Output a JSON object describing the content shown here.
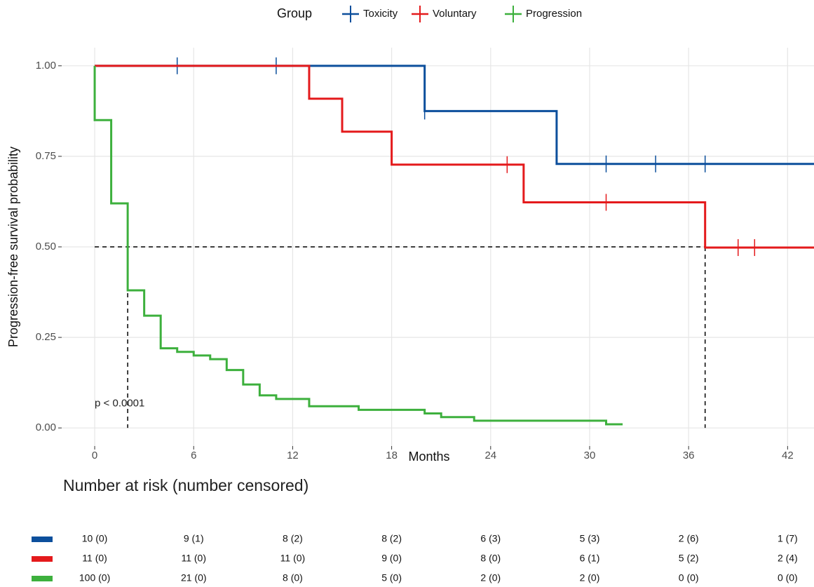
{
  "chart_data": {
    "type": "step",
    "legend_title": "Group",
    "xlabel": "Months",
    "ylabel": "Progression-free survival probability",
    "xlim": [
      -2,
      43.6
    ],
    "ylim": [
      -0.05,
      1.05
    ],
    "xticks": [
      0,
      6,
      12,
      18,
      24,
      30,
      36,
      42
    ],
    "yticks": [
      {
        "value": 0,
        "label": "0.00"
      },
      {
        "value": 0.25,
        "label": "0.25"
      },
      {
        "value": 0.5,
        "label": "0.50"
      },
      {
        "value": 0.75,
        "label": "0.75"
      },
      {
        "value": 1,
        "label": "1.00"
      }
    ],
    "grid": true,
    "series": [
      {
        "name": "Toxicity",
        "color": "#0c4f9c",
        "x": [
          0,
          20,
          28,
          44
        ],
        "values": [
          1,
          0.875,
          0.729,
          0.729
        ],
        "censor_x": [
          5,
          11,
          20,
          31,
          34,
          37
        ],
        "censor_values": [
          1,
          1,
          0.875,
          0.729,
          0.729,
          0.729
        ]
      },
      {
        "name": "Voluntary",
        "color": "#e41a1c",
        "x": [
          0,
          13,
          15,
          18,
          26,
          37,
          44
        ],
        "values": [
          1,
          0.909,
          0.818,
          0.727,
          0.623,
          0.498,
          0.498
        ],
        "censor_x": [
          25,
          31,
          39,
          40,
          44
        ],
        "censor_values": [
          0.727,
          0.623,
          0.498,
          0.498,
          0.498
        ]
      },
      {
        "name": "Progression",
        "color": "#3db03d",
        "x": [
          0,
          0,
          1,
          2,
          3,
          4,
          5,
          6,
          7,
          8,
          9,
          10,
          11,
          13,
          16,
          20,
          21,
          23,
          31,
          32
        ],
        "values": [
          1,
          0.85,
          0.62,
          0.38,
          0.31,
          0.22,
          0.21,
          0.2,
          0.19,
          0.16,
          0.12,
          0.09,
          0.08,
          0.06,
          0.05,
          0.04,
          0.03,
          0.02,
          0.01,
          0.01
        ],
        "censor_x": [],
        "censor_values": []
      }
    ],
    "median_line": {
      "y": 0.5,
      "x": [
        2,
        37
      ]
    },
    "annotation": {
      "text": "p < 0.0001",
      "x": 0,
      "y": 0.04
    },
    "risk_table": {
      "title": "Number at risk (number censored)",
      "rows": [
        [
          "10 (0)",
          "9 (1)",
          "8 (2)",
          "8 (2)",
          "6 (3)",
          "5 (3)",
          "2 (6)",
          "1 (7)"
        ],
        [
          "11 (0)",
          "11 (0)",
          "11 (0)",
          "9 (0)",
          "8 (0)",
          "6 (1)",
          "5 (2)",
          "2 (4)"
        ],
        [
          "100 (0)",
          "21 (0)",
          "8 (0)",
          "5 (0)",
          "2 (0)",
          "2 (0)",
          "0 (0)",
          "0 (0)"
        ]
      ]
    }
  }
}
